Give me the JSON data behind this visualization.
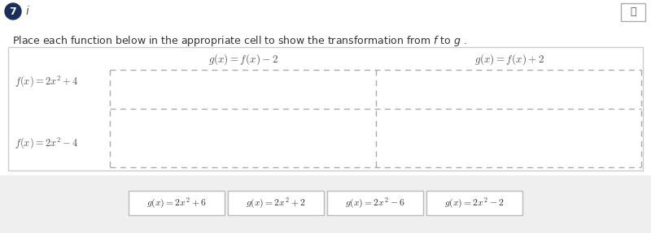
{
  "title_text": "Place each function below in the appropriate cell to show the transformation from $f$ to $g$ .",
  "question_num": "7",
  "background_color": "#ffffff",
  "col_headers": [
    "$g(x) = f(x) - 2$",
    "$g(x) = f(x) + 2$"
  ],
  "row_labels": [
    "$f(x) = 2x^2 + 4$",
    "$f(x) = 2x^2 - 4$"
  ],
  "answer_tiles": [
    "$g(x) = 2x^2 + 6$",
    "$g(x) = 2x^2 + 2$",
    "$g(x) = 2x^2 - 6$",
    "$g(x) = 2x^2 - 2$"
  ],
  "table_bg": "#ffffff",
  "tile_bg": "#ffffff",
  "tile_border": "#bbbbbb",
  "dashed_color": "#aaaaaa",
  "text_color": "#555555",
  "header_color": "#555555",
  "outer_border_color": "#cccccc",
  "bottom_bg_color": "#efefef",
  "number_bg": "#1a2e5a",
  "icon_border": "#aaaaaa"
}
